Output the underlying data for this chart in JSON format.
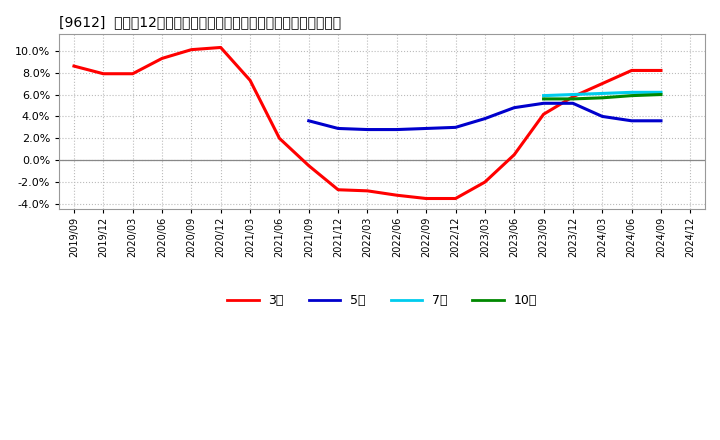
{
  "title": "[9612]  売上高12か月移動合計の対前年同期増減率の平均値の推移",
  "background_color": "#ffffff",
  "plot_bg_color": "#ffffff",
  "grid_color": "#bbbbbb",
  "ylim": [
    -0.045,
    0.115
  ],
  "yticks": [
    -0.04,
    -0.02,
    0.0,
    0.02,
    0.04,
    0.06,
    0.08,
    0.1
  ],
  "series": {
    "3year": {
      "color": "#ff0000",
      "label": "3年",
      "x": [
        "2019/09",
        "2019/12",
        "2020/03",
        "2020/06",
        "2020/09",
        "2020/12",
        "2021/03",
        "2021/06",
        "2021/09",
        "2021/12",
        "2022/03",
        "2022/06",
        "2022/09",
        "2022/12",
        "2023/03",
        "2023/06",
        "2023/09",
        "2023/12",
        "2024/03",
        "2024/06",
        "2024/09"
      ],
      "y": [
        0.086,
        0.079,
        0.079,
        0.093,
        0.101,
        0.103,
        0.073,
        0.02,
        -0.005,
        -0.027,
        -0.028,
        -0.032,
        -0.035,
        -0.035,
        -0.02,
        0.005,
        0.042,
        0.058,
        0.07,
        0.082,
        0.082
      ]
    },
    "5year": {
      "color": "#0000cc",
      "label": "5年",
      "x": [
        "2021/09",
        "2021/12",
        "2022/03",
        "2022/06",
        "2022/09",
        "2022/12",
        "2023/03",
        "2023/06",
        "2023/09",
        "2023/12",
        "2024/03",
        "2024/06",
        "2024/09"
      ],
      "y": [
        0.036,
        0.029,
        0.028,
        0.028,
        0.029,
        0.03,
        0.038,
        0.048,
        0.052,
        0.052,
        0.04,
        0.036,
        0.036
      ]
    },
    "7year": {
      "color": "#00ccee",
      "label": "7年",
      "x": [
        "2023/09",
        "2023/12",
        "2024/03",
        "2024/06",
        "2024/09"
      ],
      "y": [
        0.059,
        0.06,
        0.061,
        0.062,
        0.062
      ]
    },
    "10year": {
      "color": "#008800",
      "label": "10年",
      "x": [
        "2023/09",
        "2023/12",
        "2024/03",
        "2024/06",
        "2024/09"
      ],
      "y": [
        0.056,
        0.056,
        0.057,
        0.059,
        0.06
      ]
    }
  },
  "xtick_labels": [
    "2019/09",
    "2019/12",
    "2020/03",
    "2020/06",
    "2020/09",
    "2020/12",
    "2021/03",
    "2021/06",
    "2021/09",
    "2021/12",
    "2022/03",
    "2022/06",
    "2022/09",
    "2022/12",
    "2023/03",
    "2023/06",
    "2023/09",
    "2023/12",
    "2024/03",
    "2024/06",
    "2024/09",
    "2024/12"
  ]
}
